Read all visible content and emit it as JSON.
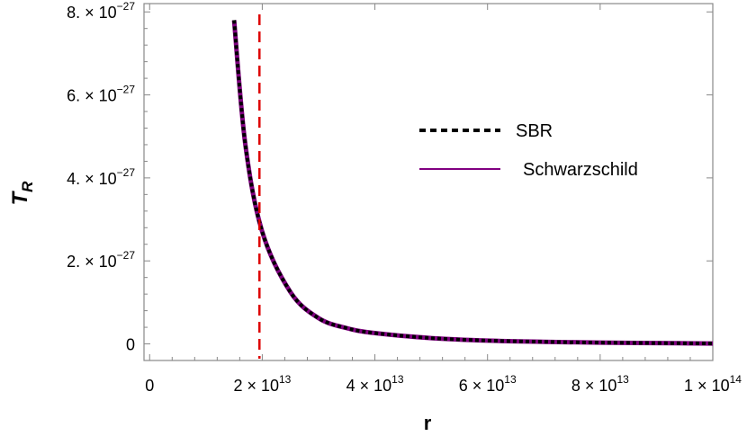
{
  "chart_data": {
    "type": "line",
    "xlabel": "r",
    "ylabel": {
      "base": "T",
      "subscript": "R"
    },
    "xlim": [
      -1000000000000.0,
      100000000000000.0
    ],
    "ylim": [
      -4e-28,
      8.2e-27
    ],
    "x_ticks": [
      {
        "value": 0,
        "mantissa": "0",
        "exp": ""
      },
      {
        "value": 20000000000000.0,
        "mantissa": "2 × 10",
        "exp": "13"
      },
      {
        "value": 40000000000000.0,
        "mantissa": "4 × 10",
        "exp": "13"
      },
      {
        "value": 60000000000000.0,
        "mantissa": "6 × 10",
        "exp": "13"
      },
      {
        "value": 80000000000000.0,
        "mantissa": "8 × 10",
        "exp": "13"
      },
      {
        "value": 100000000000000.0,
        "mantissa": "1 × 10",
        "exp": "14"
      }
    ],
    "y_ticks": [
      {
        "value": 0,
        "mantissa": "0",
        "exp": ""
      },
      {
        "value": 2e-27,
        "mantissa": "2. × 10",
        "exp": "−27"
      },
      {
        "value": 4e-27,
        "mantissa": "4. × 10",
        "exp": "−27"
      },
      {
        "value": 6e-27,
        "mantissa": "6. × 10",
        "exp": "−27"
      },
      {
        "value": 8e-27,
        "mantissa": "8. × 10",
        "exp": "−27"
      }
    ],
    "series": [
      {
        "name": "SBR",
        "style": "dashed",
        "color": "#000000",
        "x": [
          15000000000000.0,
          17000000000000.0,
          20000000000000.0,
          25000000000000.0,
          30000000000000.0,
          35000000000000.0,
          40000000000000.0,
          50000000000000.0,
          60000000000000.0,
          70000000000000.0,
          80000000000000.0,
          90000000000000.0,
          100000000000000.0
        ],
        "y": [
          7.8e-27,
          4.8e-27,
          2.7e-27,
          1.25e-27,
          6.2e-28,
          3.8e-28,
          2.6e-28,
          1.4e-28,
          8e-29,
          5e-29,
          3e-29,
          2e-29,
          1e-29
        ]
      },
      {
        "name": "Schwarzschild",
        "style": "solid",
        "color": "#800080",
        "x": [
          15000000000000.0,
          17000000000000.0,
          20000000000000.0,
          25000000000000.0,
          30000000000000.0,
          35000000000000.0,
          40000000000000.0,
          50000000000000.0,
          60000000000000.0,
          70000000000000.0,
          80000000000000.0,
          90000000000000.0,
          100000000000000.0
        ],
        "y": [
          7.8e-27,
          4.8e-27,
          2.7e-27,
          1.25e-27,
          6.2e-28,
          3.8e-28,
          2.6e-28,
          1.4e-28,
          8e-29,
          5e-29,
          3e-29,
          2e-29,
          1e-29
        ]
      }
    ],
    "vline": {
      "x": 19500000000000.0,
      "color": "#dd0000",
      "style": "dashed"
    },
    "legend": {
      "placement": "right"
    },
    "grid": false,
    "frame_color": "#888888"
  }
}
